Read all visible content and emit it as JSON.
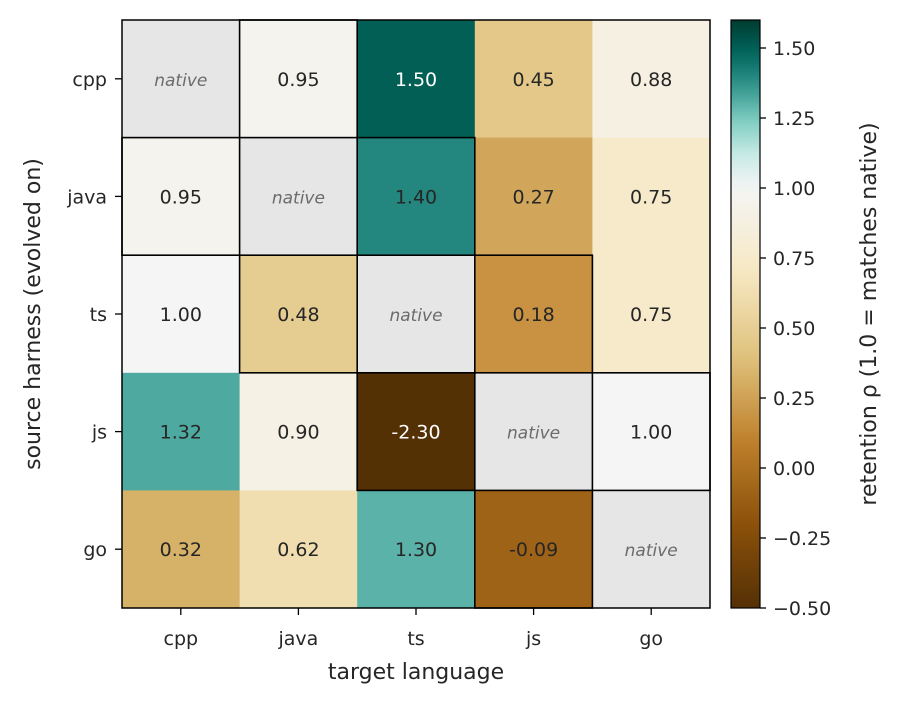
{
  "chart_data": {
    "type": "heatmap",
    "xlabel": "target language",
    "ylabel": "source harness (evolved on)",
    "x_categories": [
      "cpp",
      "java",
      "ts",
      "js",
      "go"
    ],
    "y_categories": [
      "cpp",
      "java",
      "ts",
      "js",
      "go"
    ],
    "values": [
      [
        null,
        0.95,
        1.5,
        0.45,
        0.88
      ],
      [
        0.95,
        null,
        1.4,
        0.27,
        0.75
      ],
      [
        1.0,
        0.48,
        null,
        0.18,
        0.75
      ],
      [
        1.32,
        0.9,
        -2.3,
        null,
        1.0
      ],
      [
        0.32,
        0.62,
        1.3,
        -0.09,
        null
      ]
    ],
    "cell_labels": [
      [
        "native",
        "0.95",
        "1.50",
        "0.45",
        "0.88"
      ],
      [
        "0.95",
        "native",
        "1.40",
        "0.27",
        "0.75"
      ],
      [
        "1.00",
        "0.48",
        "native",
        "0.18",
        "0.75"
      ],
      [
        "1.32",
        "0.90",
        "-2.30",
        "native",
        "1.00"
      ],
      [
        "0.32",
        "0.62",
        "1.30",
        "-0.09",
        "native"
      ]
    ],
    "diagonal_label": "native",
    "colorbar": {
      "label": "retention ρ  (1.0 = matches native)",
      "colormap": "BrBG diverging, centered at 1.0",
      "range": [
        -0.5,
        1.6
      ],
      "center": 1.0,
      "ticks": [
        -0.5,
        -0.25,
        0.0,
        0.25,
        0.5,
        0.75,
        1.0,
        1.25,
        1.5
      ],
      "tick_labels": [
        "−0.50",
        "−0.25",
        "0.00",
        "0.25",
        "0.50",
        "0.75",
        "1.00",
        "1.25",
        "1.50"
      ]
    },
    "outlined_cells": [
      [
        1,
        0
      ],
      [
        0,
        1
      ],
      [
        2,
        1
      ],
      [
        1,
        2
      ],
      [
        3,
        2
      ],
      [
        2,
        3
      ],
      [
        4,
        3
      ],
      [
        3,
        4
      ]
    ],
    "diagonal_color": "#e6e6e6"
  }
}
